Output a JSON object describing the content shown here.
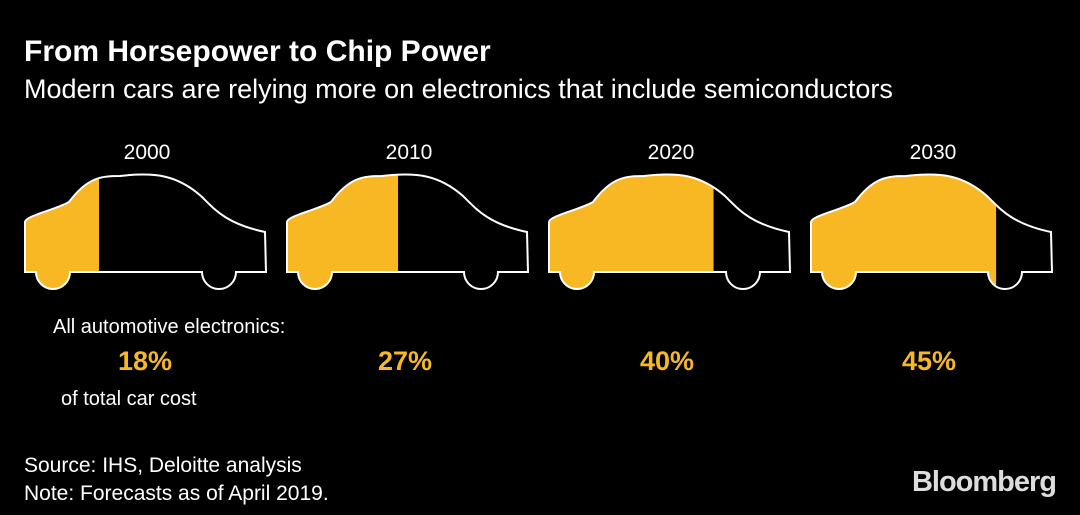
{
  "title": "From Horsepower to Chip Power",
  "subtitle": "Modern cars are relying more on electronics that include semiconductors",
  "label_top": "All automotive electronics:",
  "label_bottom": "of total car cost",
  "source": "Source: IHS, Deloitte analysis",
  "note": "Note: Forecasts as of April 2019.",
  "logo": "Bloomberg",
  "colors": {
    "accent": "#f8b824",
    "background": "#000000",
    "outline": "#ffffff"
  },
  "chart_data": {
    "type": "pictogram",
    "categories": [
      "2000",
      "2010",
      "2020",
      "2030"
    ],
    "values": [
      18,
      27,
      40,
      45
    ],
    "value_labels": [
      "18%",
      "27%",
      "40%",
      "45%"
    ],
    "unit": "%"
  }
}
